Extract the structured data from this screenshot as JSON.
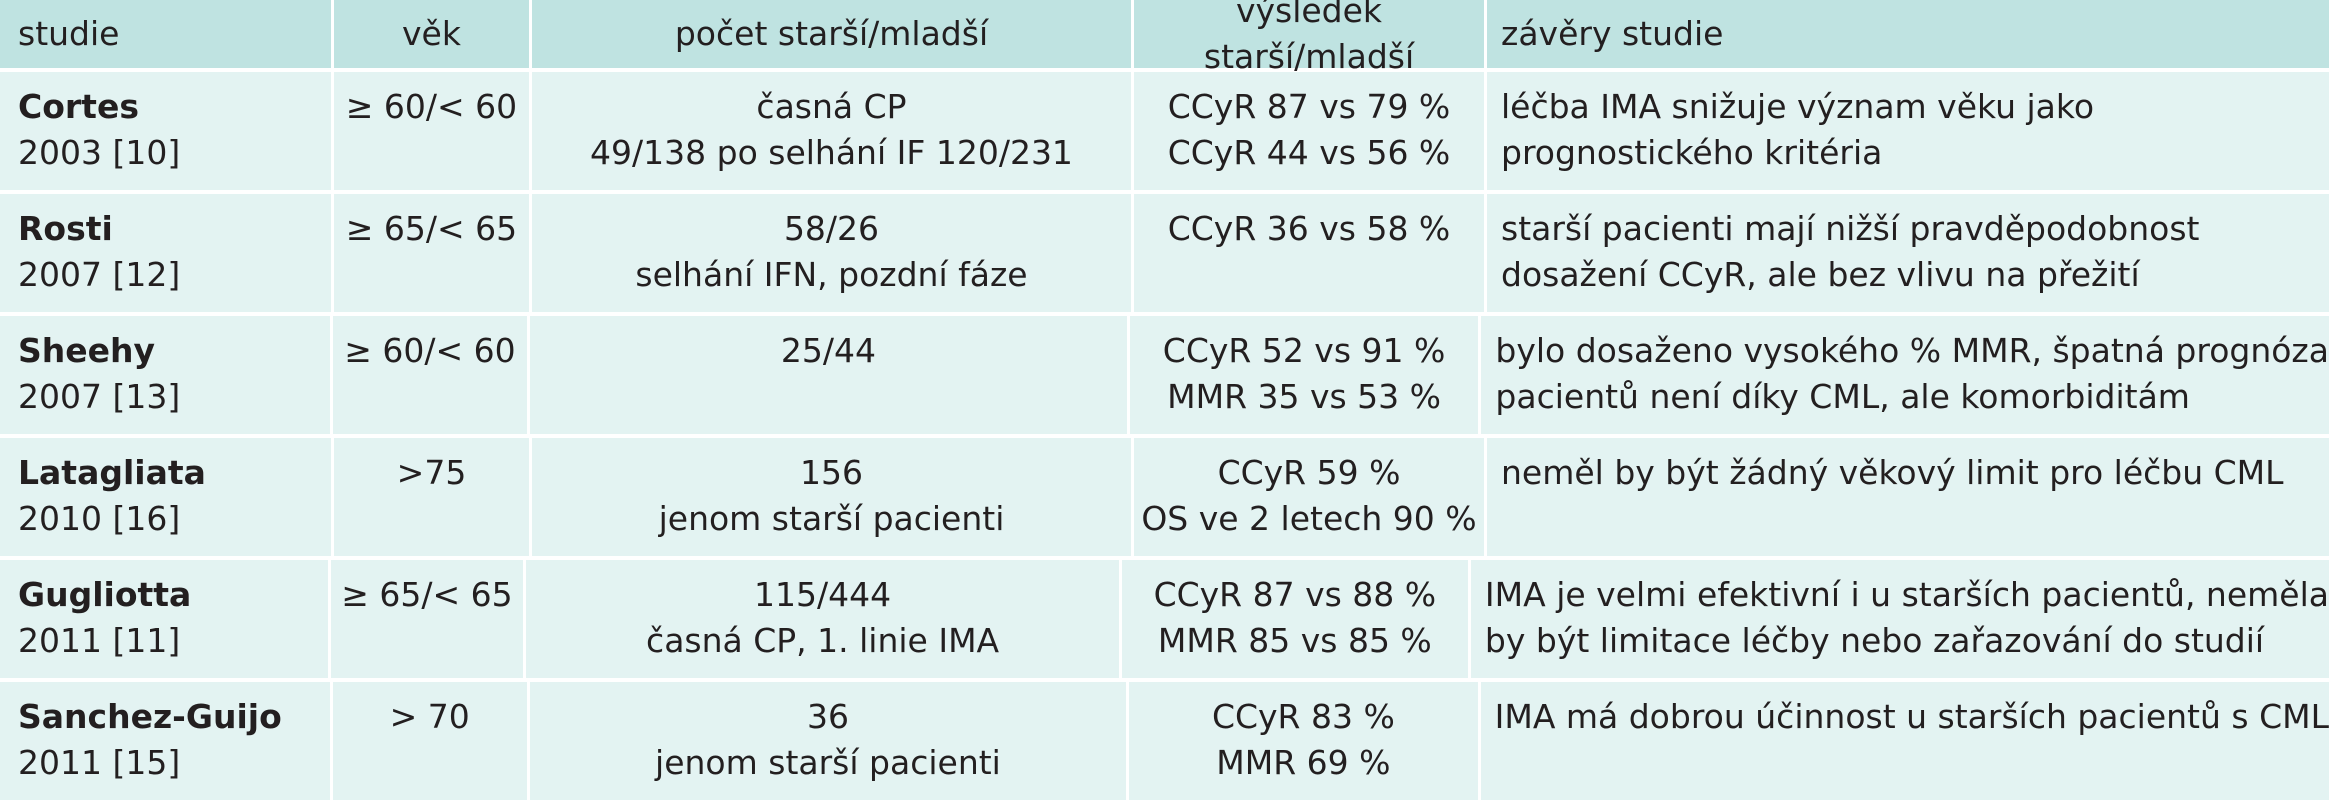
{
  "header": {
    "study": "studie",
    "age": "věk",
    "count": "počet starší/mladší",
    "result": "výsledek starší/mladší",
    "conclusions": "závěry studie"
  },
  "rows": [
    {
      "name": "Cortes",
      "year": "2003 [10]",
      "age": "≥ 60/< 60",
      "count": [
        "časná CP",
        "49/138 po selhání IF 120/231"
      ],
      "result": [
        "CCyR 87 vs 79 %",
        "CCyR 44 vs 56 %"
      ],
      "conclusion": [
        "léčba IMA snižuje význam věku jako",
        "prognostického kritéria"
      ]
    },
    {
      "name": "Rosti",
      "year": "2007 [12]",
      "age": "≥ 65/< 65",
      "count": [
        "58/26",
        "selhání IFN, pozdní fáze"
      ],
      "result": [
        "CCyR 36 vs 58 %",
        ""
      ],
      "conclusion": [
        "starší pacienti mají nižší pravděpodobnost",
        "dosažení CCyR, ale bez vlivu na přežití"
      ]
    },
    {
      "name": "Sheehy",
      "year": "2007 [13]",
      "age": "≥ 60/< 60",
      "count": [
        "25/44",
        ""
      ],
      "result": [
        "CCyR 52 vs 91 %",
        "MMR 35 vs 53 %"
      ],
      "conclusion": [
        "bylo dosaženo vysokého % MMR, špatná prognóza",
        "pacientů není díky CML, ale komorbiditám"
      ]
    },
    {
      "name": "Latagliata",
      "year": "2010 [16]",
      "age": ">75",
      "count": [
        "156",
        "jenom starší pacienti"
      ],
      "result": [
        "CCyR 59 %",
        "OS ve 2 letech 90 %"
      ],
      "conclusion": [
        "neměl by být žádný věkový limit pro léčbu CML",
        ""
      ]
    },
    {
      "name": "Gugliotta",
      "year": "2011 [11]",
      "age": "≥ 65/< 65",
      "count": [
        "115/444",
        "časná CP, 1. linie IMA"
      ],
      "result": [
        "CCyR 87 vs 88 %",
        "MMR 85 vs 85 %"
      ],
      "conclusion": [
        "IMA je velmi efektivní i u starších pacientů, neměla",
        "by být limitace léčby nebo zařazování do studií"
      ]
    },
    {
      "name": "Sanchez-Guijo",
      "year": "2011 [15]",
      "age": "> 70",
      "count": [
        "36",
        "jenom starší pacienti"
      ],
      "result": [
        "CCyR 83 %",
        "MMR 69 %"
      ],
      "conclusion": [
        "IMA má dobrou účinnost u starších pacientů s CML",
        ""
      ]
    }
  ]
}
